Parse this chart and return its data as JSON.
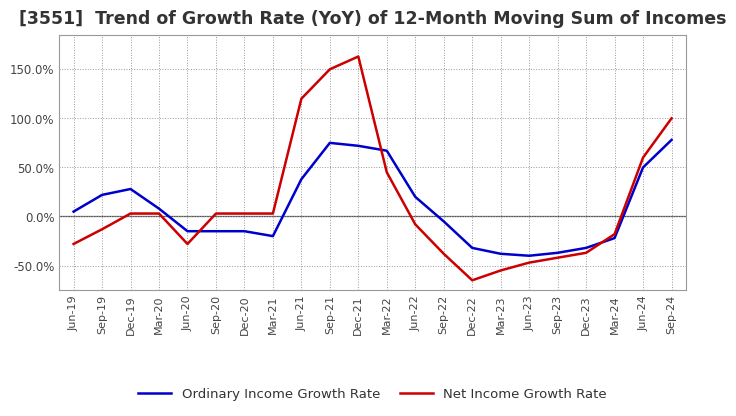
{
  "title": "[3551]  Trend of Growth Rate (YoY) of 12-Month Moving Sum of Incomes",
  "title_fontsize": 12.5,
  "ylim": [
    -75,
    185
  ],
  "yticks": [
    -50.0,
    0.0,
    50.0,
    100.0,
    150.0
  ],
  "background_color": "#ffffff",
  "grid_color": "#999999",
  "x_labels": [
    "Jun-19",
    "Sep-19",
    "Dec-19",
    "Mar-20",
    "Jun-20",
    "Sep-20",
    "Dec-20",
    "Mar-21",
    "Jun-21",
    "Sep-21",
    "Dec-21",
    "Mar-22",
    "Jun-22",
    "Sep-22",
    "Dec-22",
    "Mar-23",
    "Jun-23",
    "Sep-23",
    "Dec-23",
    "Mar-24",
    "Jun-24",
    "Sep-24"
  ],
  "ordinary_income": [
    5,
    22,
    28,
    8,
    -15,
    -15,
    -15,
    -20,
    38,
    75,
    72,
    67,
    20,
    -5,
    -32,
    -38,
    -40,
    -37,
    -32,
    -22,
    50,
    78
  ],
  "net_income": [
    -28,
    -13,
    3,
    3,
    -28,
    3,
    3,
    3,
    120,
    150,
    163,
    45,
    -8,
    -38,
    -65,
    -55,
    -47,
    -42,
    -37,
    -18,
    60,
    100
  ],
  "ordinary_color": "#0000cc",
  "net_color": "#cc0000",
  "line_width": 1.8,
  "legend_fontsize": 9.5,
  "tick_fontsize": 8,
  "ytick_fontsize": 8.5
}
